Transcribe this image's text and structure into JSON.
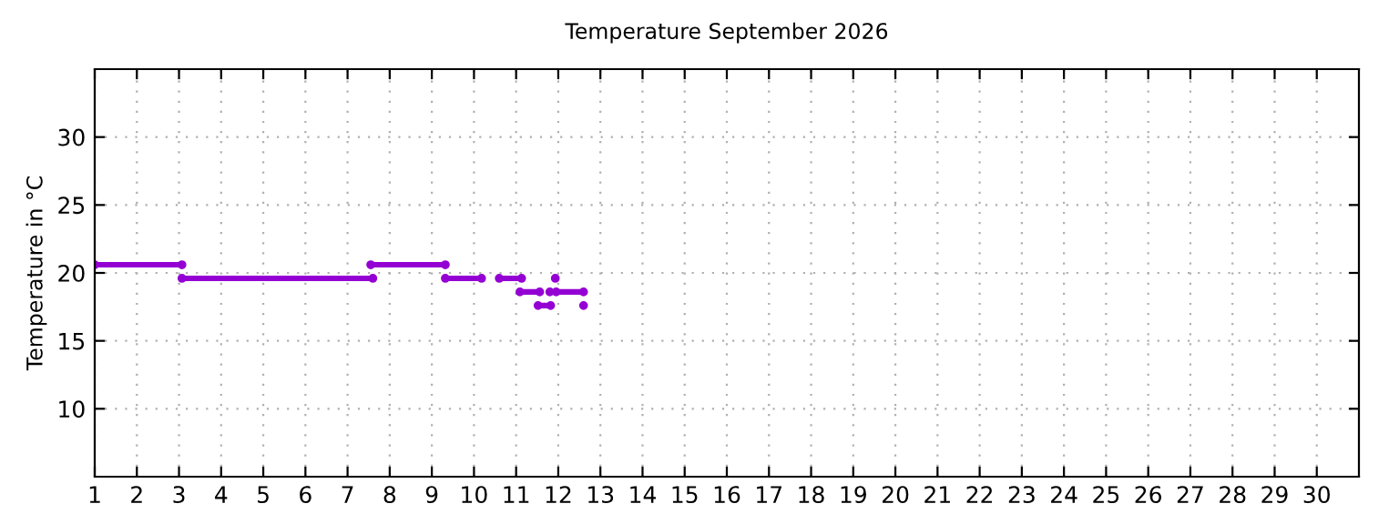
{
  "chart_data": {
    "type": "line",
    "title": "Temperature September 2026",
    "ylabel": "Temperature in °C",
    "xlim": [
      1,
      31
    ],
    "xticks": [
      1,
      2,
      3,
      4,
      5,
      6,
      7,
      8,
      9,
      10,
      11,
      12,
      13,
      14,
      15,
      16,
      17,
      18,
      19,
      20,
      21,
      22,
      23,
      24,
      25,
      26,
      27,
      28,
      29,
      30
    ],
    "ylim": [
      5,
      35
    ],
    "yticks": [
      10,
      15,
      20,
      25,
      30
    ],
    "grid": true,
    "marker": "circle",
    "line_style": "solid",
    "series": [
      {
        "color": "#9400d3",
        "x": [
          1.0,
          3.07,
          5.0,
          7.55,
          9.32
        ],
        "values": [
          20.6,
          20.6,
          null,
          20.6,
          20.6
        ]
      },
      {
        "color": "#9400d3",
        "x": [
          3.07,
          7.6,
          8.5,
          9.32,
          10.18,
          10.4,
          10.6,
          11.13,
          11.5,
          11.93
        ],
        "values": [
          19.6,
          19.6,
          null,
          19.6,
          19.6,
          null,
          19.6,
          19.6,
          null,
          19.6
        ]
      },
      {
        "color": "#9400d3",
        "x": [
          11.09,
          11.56,
          11.7,
          11.8,
          11.88,
          11.95,
          12.6
        ],
        "values": [
          18.6,
          18.6,
          null,
          18.6,
          null,
          18.6,
          18.6
        ]
      },
      {
        "color": "#9400d3",
        "x": [
          11.52,
          11.82,
          12.2,
          12.6
        ],
        "values": [
          17.6,
          17.6,
          null,
          17.6
        ]
      }
    ]
  }
}
